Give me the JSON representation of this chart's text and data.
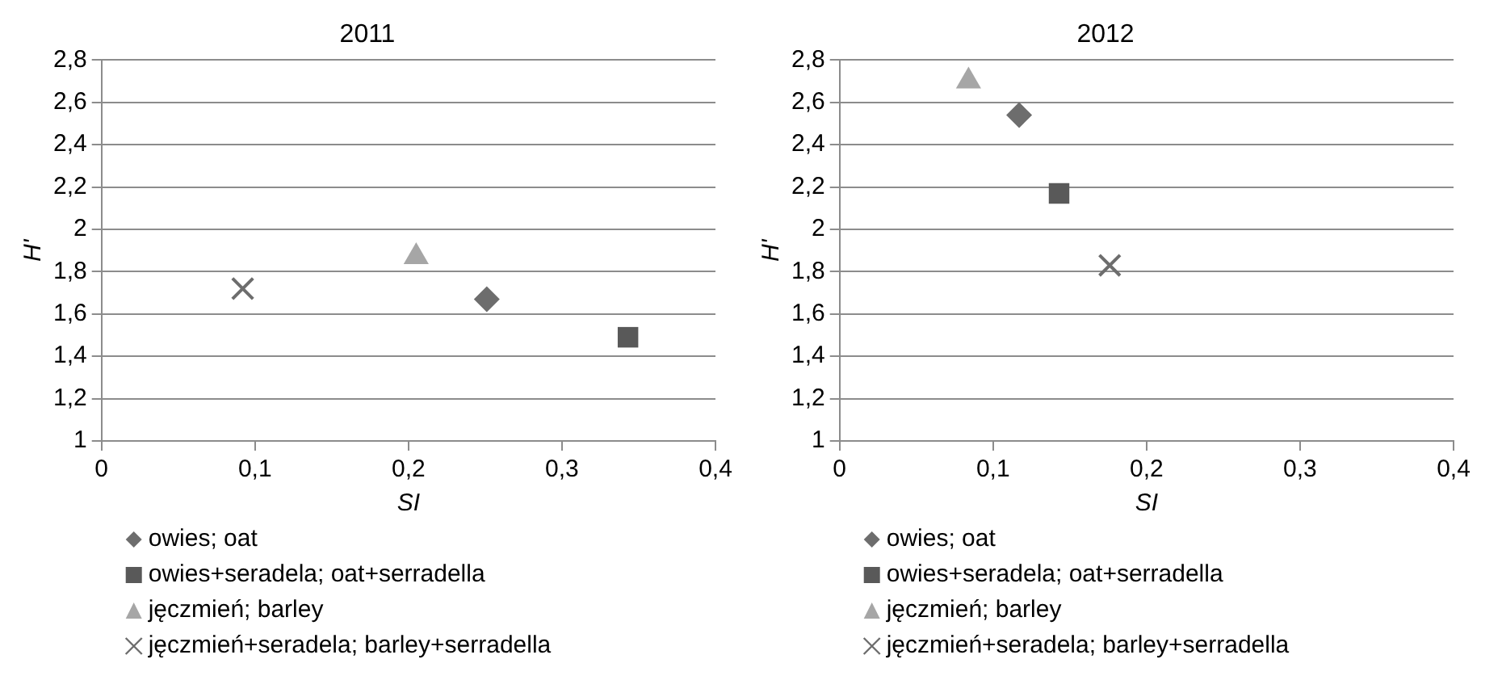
{
  "chart_data": [
    {
      "type": "scatter",
      "title": "2011",
      "xlabel": "SI",
      "ylabel": "H'",
      "xlim": [
        0,
        0.4
      ],
      "xticks": [
        {
          "value": 0,
          "label": "0"
        },
        {
          "value": 0.1,
          "label": "0,1"
        },
        {
          "value": 0.2,
          "label": "0,2"
        },
        {
          "value": 0.3,
          "label": "0,3"
        },
        {
          "value": 0.4,
          "label": "0,4"
        }
      ],
      "ylim": [
        1,
        2.8
      ],
      "yticks": [
        {
          "value": 1,
          "label": "1"
        },
        {
          "value": 1.2,
          "label": "1,2"
        },
        {
          "value": 1.4,
          "label": "1,4"
        },
        {
          "value": 1.6,
          "label": "1,6"
        },
        {
          "value": 1.8,
          "label": "1,8"
        },
        {
          "value": 2,
          "label": "2"
        },
        {
          "value": 2.2,
          "label": "2,2"
        },
        {
          "value": 2.4,
          "label": "2,4"
        },
        {
          "value": 2.6,
          "label": "2,6"
        },
        {
          "value": 2.8,
          "label": "2,8"
        }
      ],
      "grid": "y",
      "legend": "bottom",
      "series": [
        {
          "name": "owies; oat",
          "color": "#6d6d6d",
          "marker": "diamond",
          "x": [
            0.251
          ],
          "values": [
            1.67
          ]
        },
        {
          "name": "owies+seradela; oat+serradella",
          "color": "#595959",
          "marker": "square",
          "x": [
            0.343
          ],
          "values": [
            1.49
          ]
        },
        {
          "name": "jęczmień; barley",
          "color": "#a6a6a6",
          "marker": "triangle",
          "x": [
            0.205
          ],
          "values": [
            1.87
          ]
        },
        {
          "name": "jęczmień+seradela; barley+serradella",
          "color": "#6d6d6d",
          "marker": "cross",
          "x": [
            0.092
          ],
          "values": [
            1.72
          ]
        }
      ]
    },
    {
      "type": "scatter",
      "title": "2012",
      "xlabel": "SI",
      "ylabel": "H'",
      "xlim": [
        0,
        0.4
      ],
      "xticks": [
        {
          "value": 0,
          "label": "0"
        },
        {
          "value": 0.1,
          "label": "0,1"
        },
        {
          "value": 0.2,
          "label": "0,2"
        },
        {
          "value": 0.3,
          "label": "0,3"
        },
        {
          "value": 0.4,
          "label": "0,4"
        }
      ],
      "ylim": [
        1,
        2.8
      ],
      "yticks": [
        {
          "value": 1,
          "label": "1"
        },
        {
          "value": 1.2,
          "label": "1,2"
        },
        {
          "value": 1.4,
          "label": "1,4"
        },
        {
          "value": 1.6,
          "label": "1,6"
        },
        {
          "value": 1.8,
          "label": "1,8"
        },
        {
          "value": 2,
          "label": "2"
        },
        {
          "value": 2.2,
          "label": "2,2"
        },
        {
          "value": 2.4,
          "label": "2,4"
        },
        {
          "value": 2.6,
          "label": "2,6"
        },
        {
          "value": 2.8,
          "label": "2,8"
        }
      ],
      "grid": "y",
      "legend": "bottom",
      "series": [
        {
          "name": "owies; oat",
          "color": "#6d6d6d",
          "marker": "diamond",
          "x": [
            0.117
          ],
          "values": [
            2.54
          ]
        },
        {
          "name": "owies+seradela; oat+serradella",
          "color": "#595959",
          "marker": "square",
          "x": [
            0.143
          ],
          "values": [
            2.17
          ]
        },
        {
          "name": "jęczmień; barley",
          "color": "#a6a6a6",
          "marker": "triangle",
          "x": [
            0.084
          ],
          "values": [
            2.7
          ]
        },
        {
          "name": "jęczmień+seradela; barley+serradella",
          "color": "#6d6d6d",
          "marker": "cross",
          "x": [
            0.176
          ],
          "values": [
            1.83
          ]
        }
      ]
    }
  ]
}
